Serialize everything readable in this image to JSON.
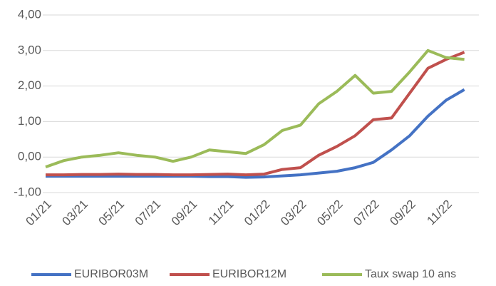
{
  "chart_data": {
    "type": "line",
    "categories": [
      "01/21",
      null,
      "03/21",
      null,
      "05/21",
      null,
      "07/21",
      null,
      "09/21",
      null,
      "11/21",
      null,
      "01/22",
      null,
      "03/22",
      null,
      "05/22",
      null,
      "07/22",
      null,
      "09/22",
      null,
      "11/22",
      null
    ],
    "series": [
      {
        "name": "EURIBOR03M",
        "color": "#4472c4",
        "values": [
          -0.54,
          -0.54,
          -0.54,
          -0.54,
          -0.54,
          -0.54,
          -0.54,
          -0.54,
          -0.54,
          -0.55,
          -0.55,
          -0.57,
          -0.56,
          -0.53,
          -0.5,
          -0.45,
          -0.4,
          -0.3,
          -0.15,
          0.2,
          0.6,
          1.15,
          1.6,
          1.9
        ]
      },
      {
        "name": "EURIBOR12M",
        "color": "#c0504d",
        "values": [
          -0.5,
          -0.5,
          -0.49,
          -0.49,
          -0.48,
          -0.49,
          -0.49,
          -0.5,
          -0.5,
          -0.49,
          -0.48,
          -0.5,
          -0.48,
          -0.35,
          -0.3,
          0.05,
          0.3,
          0.6,
          1.05,
          1.1,
          1.8,
          2.5,
          2.75,
          2.95
        ]
      },
      {
        "name": "Taux swap 10 ans",
        "color": "#9bbb59",
        "values": [
          -0.28,
          -0.1,
          0.0,
          0.05,
          0.12,
          0.05,
          0.0,
          -0.12,
          0.0,
          0.2,
          0.15,
          0.1,
          0.35,
          0.75,
          0.9,
          1.5,
          1.85,
          2.3,
          1.8,
          1.85,
          2.4,
          3.0,
          2.8,
          2.75
        ]
      }
    ],
    "ylim": [
      -1,
      4
    ],
    "yticks": [
      {
        "value": -1,
        "label": "-1,00"
      },
      {
        "value": 0,
        "label": "0,00"
      },
      {
        "value": 1,
        "label": "1,00"
      },
      {
        "value": 2,
        "label": "2,00"
      },
      {
        "value": 3,
        "label": "3,00"
      },
      {
        "value": 4,
        "label": "4,00"
      }
    ],
    "grid": true,
    "legend": "bottom"
  }
}
